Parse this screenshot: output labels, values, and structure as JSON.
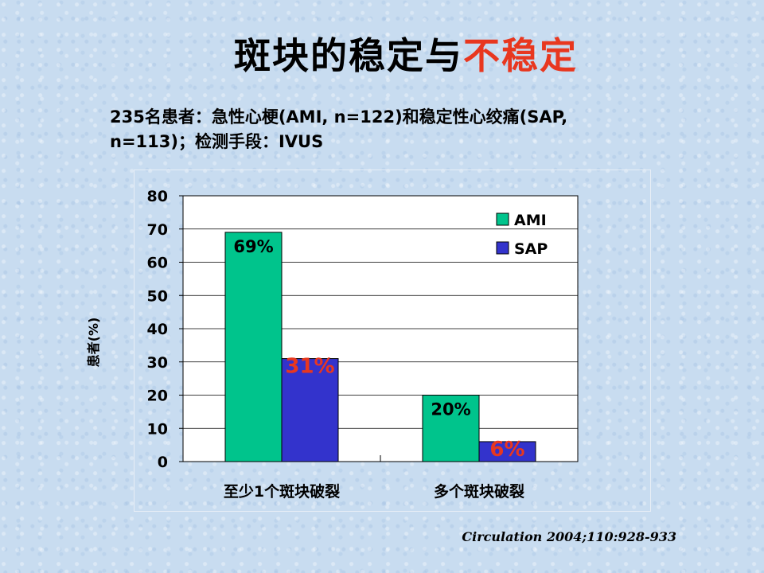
{
  "slide": {
    "title_black": "斑块的稳定与",
    "title_red": "不稳定",
    "subtitle_line1": "235名患者：急性心梗(AMI, n=122)和稳定性心绞痛(SAP,",
    "subtitle_line2": "n=113)；检测手段：IVUS",
    "source": "Circulation 2004;110:928-933",
    "title_red_color": "#e8371f"
  },
  "chart_data": {
    "type": "bar",
    "categories": [
      "至少1个斑块破裂",
      "多个斑块破裂"
    ],
    "series": [
      {
        "name": "AMI",
        "values": [
          69,
          20
        ],
        "labels": [
          "69%",
          "20%"
        ],
        "color": "#00c48c",
        "label_color": "#000000"
      },
      {
        "name": "SAP",
        "values": [
          31,
          6
        ],
        "labels": [
          "31%",
          "6%"
        ],
        "color": "#3333cc",
        "label_color": "#e8371f"
      }
    ],
    "ylabel": "患者(%)",
    "ylim": [
      0,
      80
    ],
    "yticks": [
      0,
      10,
      20,
      30,
      40,
      50,
      60,
      70,
      80
    ],
    "grid": true,
    "legend_position": "top-right"
  }
}
